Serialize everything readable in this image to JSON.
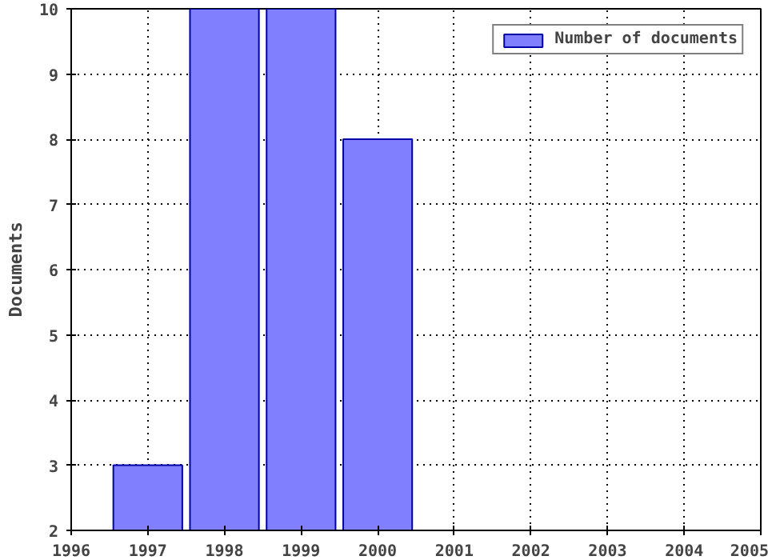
{
  "chart_data": {
    "type": "bar",
    "ylabel": "Documents",
    "x": [
      1997,
      1998,
      1999,
      2000
    ],
    "series": [
      {
        "name": "Number of documents",
        "color": "#8080ff",
        "values": [
          3,
          10,
          10,
          8
        ]
      }
    ],
    "xlim": [
      1996,
      2005
    ],
    "xticks": [
      1996,
      1997,
      1998,
      1999,
      2000,
      2001,
      2002,
      2003,
      2004,
      2005
    ],
    "ylim": [
      2,
      10
    ],
    "yticks": [
      2,
      3,
      4,
      5,
      6,
      7,
      8,
      9,
      10
    ],
    "grid": true,
    "legend": "top right"
  }
}
